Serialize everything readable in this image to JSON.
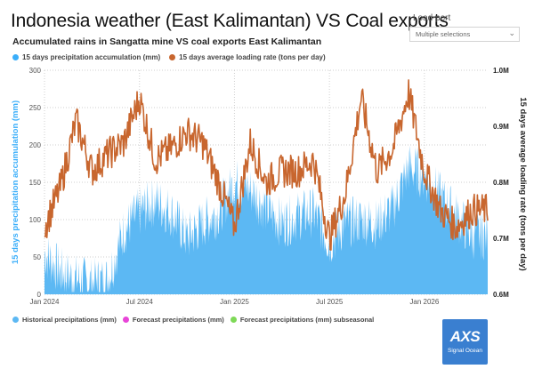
{
  "title": "Indonesia weather (East Kalimantan) VS Coal exports",
  "subtitle": "Accumulated rains in Sangatta mine VS coal exports East Kalimantan",
  "filter": {
    "label": "Load port",
    "value": "Multiple selections",
    "icon": "chevron-down-icon"
  },
  "legend_top": [
    {
      "label": "15 days precipitation accumulation (mm)",
      "color": "#3aaefa"
    },
    {
      "label": "15 days average loading rate (tons per day)",
      "color": "#c8662e"
    }
  ],
  "legend_bottom": [
    {
      "label": "Historical precipitations (mm)",
      "color": "#5cb8f3"
    },
    {
      "label": "Forecast precipitations (mm)",
      "color": "#e845d8"
    },
    {
      "label": "Forecast precipitations (mm) subseasonal",
      "color": "#7ed957"
    }
  ],
  "logo": {
    "main": "AXS",
    "sub": "Signal Ocean"
  },
  "chart_data": {
    "type": "area",
    "x_ticks": [
      "Jan 2024",
      "Jul 2024",
      "Jan 2025",
      "Jul 2025",
      "Jan 2026"
    ],
    "y_left": {
      "label": "15 days precipitation accumulation (mm)",
      "ticks": [
        0,
        50,
        100,
        150,
        200,
        250,
        300
      ],
      "range": [
        0,
        300
      ],
      "color": "#3aaefa"
    },
    "y_right": {
      "label": "15 days average loading rate (tons per day)",
      "ticks": [
        "0.6M",
        "0.7M",
        "0.8M",
        "0.9M",
        "1.0M"
      ],
      "range": [
        0.6,
        1.0
      ],
      "unit": "M tons per day"
    },
    "grid": true,
    "x": [
      "2024-01",
      "2024-02",
      "2024-03",
      "2024-04",
      "2024-05",
      "2024-06",
      "2024-07",
      "2024-08",
      "2024-09",
      "2024-10",
      "2024-11",
      "2024-12",
      "2025-01",
      "2025-02",
      "2025-03",
      "2025-04",
      "2025-05",
      "2025-06",
      "2025-07",
      "2025-08",
      "2025-09",
      "2025-10",
      "2025-11",
      "2025-12",
      "2026-01",
      "2026-02",
      "2026-03",
      "2026-04"
    ],
    "series": [
      {
        "name": "15 days precipitation accumulation (mm)",
        "axis": "left",
        "style": "area",
        "color": "#5cb8f3",
        "values": [
          55,
          30,
          20,
          15,
          20,
          85,
          110,
          125,
          110,
          75,
          95,
          110,
          150,
          140,
          115,
          95,
          105,
          110,
          70,
          95,
          100,
          95,
          115,
          170,
          160,
          130,
          105,
          80
        ]
      },
      {
        "name": "15 days average loading rate (tons per day)",
        "axis": "right",
        "style": "line",
        "color": "#c8662e",
        "values": [
          0.72,
          0.79,
          0.91,
          0.82,
          0.85,
          0.87,
          0.95,
          0.84,
          0.86,
          0.89,
          0.87,
          0.8,
          0.72,
          0.87,
          0.8,
          0.82,
          0.82,
          0.84,
          0.7,
          0.78,
          0.95,
          0.82,
          0.86,
          0.96,
          0.82,
          0.75,
          0.72,
          0.75
        ]
      }
    ]
  }
}
